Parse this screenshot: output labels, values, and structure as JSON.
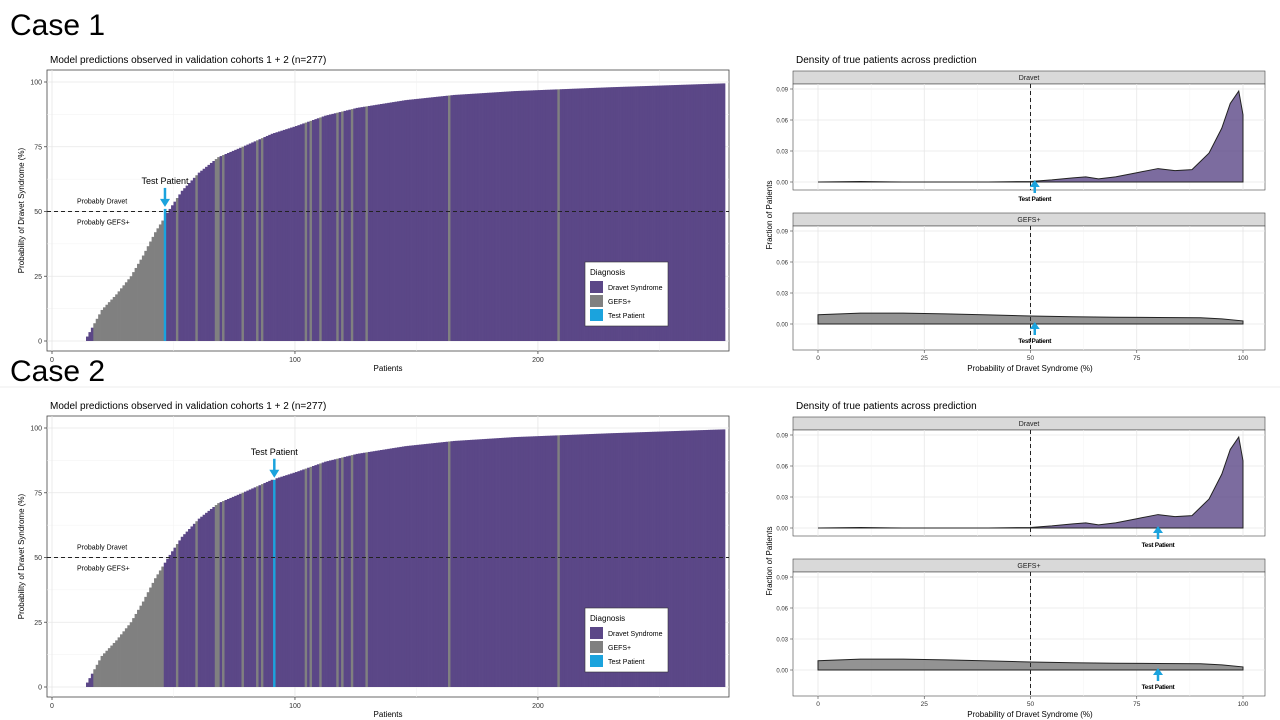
{
  "cases": [
    {
      "label": "Case 1",
      "test_patient_rank": 46,
      "test_patient_prob": 51
    },
    {
      "label": "Case 2",
      "test_patient_rank": 91,
      "test_patient_prob": 80
    }
  ],
  "chart_data": [
    {
      "type": "bar",
      "title": "Model predictions observed in validation cohorts 1 + 2 (n=277)",
      "xlabel": "Patients",
      "ylabel": "Probability of Dravet Syndrome (%)",
      "xlim": [
        0,
        277
      ],
      "ylim": [
        0,
        100
      ],
      "x_ticks": [
        0,
        100,
        200
      ],
      "y_ticks": [
        0,
        25,
        50,
        75,
        100
      ],
      "n_patients": 277,
      "n_zero": 13,
      "threshold": 50,
      "threshold_labels": [
        "Probably Dravet",
        "Probably GEFS+"
      ],
      "value_curve_knots": [
        [
          13,
          0
        ],
        [
          20,
          12
        ],
        [
          26,
          18
        ],
        [
          32,
          25
        ],
        [
          37,
          33
        ],
        [
          42,
          42
        ],
        [
          48,
          51
        ],
        [
          53,
          58
        ],
        [
          60,
          65
        ],
        [
          68,
          71
        ],
        [
          78,
          75
        ],
        [
          90,
          80
        ],
        [
          100,
          83
        ],
        [
          112,
          87
        ],
        [
          125,
          90
        ],
        [
          145,
          93
        ],
        [
          165,
          95
        ],
        [
          190,
          96.5
        ],
        [
          230,
          98
        ],
        [
          277,
          99.5
        ]
      ],
      "gefs_ranks": [
        17,
        18,
        19,
        20,
        21,
        22,
        23,
        24,
        25,
        26,
        27,
        28,
        29,
        30,
        31,
        32,
        33,
        34,
        35,
        36,
        37,
        38,
        39,
        40,
        41,
        42,
        43,
        44,
        45,
        51,
        59,
        67,
        68,
        70,
        78,
        84,
        86,
        104,
        106,
        110,
        117,
        119,
        123,
        129,
        163,
        208
      ],
      "legend": {
        "title": "Diagnosis",
        "entries": [
          "Dravet Syndrome",
          "GEFS+",
          "Test Patient"
        ]
      },
      "annotation": "Test Patient",
      "colors": {
        "dravet": "#5b4787",
        "gefs": "#808080",
        "test": "#1ba3dd"
      }
    },
    {
      "type": "area",
      "title": "Density of true patients across prediction",
      "xlabel": "Probability of Dravet Syndrome (%)",
      "ylabel": "Fraction of Patients",
      "xlim": [
        0,
        100
      ],
      "ylim": [
        0,
        0.09
      ],
      "x_ticks": [
        0,
        25,
        50,
        75,
        100
      ],
      "y_ticks": [
        "0.00",
        "0.03",
        "0.06",
        "0.09"
      ],
      "threshold": 50,
      "facets": [
        {
          "name": "Dravet",
          "fill": "#5b4787",
          "x": [
            0,
            10,
            20,
            30,
            40,
            50,
            55,
            60,
            63,
            66,
            70,
            75,
            80,
            84,
            88,
            92,
            95,
            97,
            99,
            100
          ],
          "y": [
            0,
            0.0005,
            0,
            0,
            0,
            0.0005,
            0.002,
            0.004,
            0.005,
            0.003,
            0.005,
            0.009,
            0.013,
            0.011,
            0.012,
            0.028,
            0.052,
            0.076,
            0.088,
            0.065
          ]
        },
        {
          "name": "GEFS+",
          "fill": "#808080",
          "x": [
            0,
            10,
            20,
            30,
            40,
            50,
            60,
            70,
            80,
            90,
            95,
            100
          ],
          "y": [
            0.009,
            0.0105,
            0.0105,
            0.0098,
            0.0088,
            0.0078,
            0.007,
            0.0065,
            0.0063,
            0.006,
            0.005,
            0.003
          ]
        }
      ],
      "annotation": "Test Patient"
    }
  ]
}
